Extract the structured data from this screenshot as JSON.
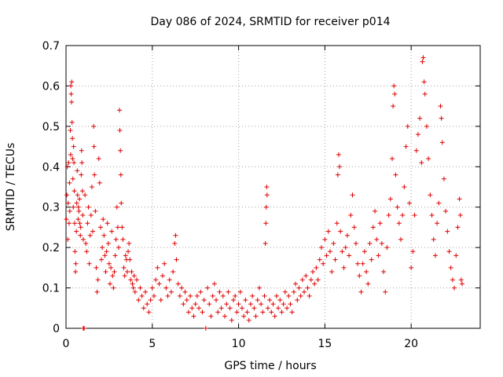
{
  "chart_data": {
    "type": "scatter",
    "title": "Day 086 of 2024, SRMTID for receiver p014",
    "xlabel": "GPS time / hours",
    "ylabel": "SRMTID / TECUs",
    "xlim": [
      0,
      24
    ],
    "ylim": [
      0,
      0.7
    ],
    "xticks": [
      0,
      5,
      10,
      15,
      20
    ],
    "yticks": [
      0,
      0.1,
      0.2,
      0.3,
      0.4,
      0.5,
      0.6,
      0.7
    ],
    "xtick_labels": [
      "0",
      "5",
      "10",
      "15",
      "20"
    ],
    "ytick_labels": [
      "0",
      "0.1",
      "0.2",
      "0.3",
      "0.4",
      "0.5",
      "0.6",
      "0.7"
    ],
    "grid": true,
    "marker": "+",
    "color": "#e00000",
    "series": [
      {
        "name": "SRMTID",
        "points": [
          [
            0.02,
            0.27
          ],
          [
            0.05,
            0.33
          ],
          [
            0.08,
            0.4
          ],
          [
            0.1,
            0.22
          ],
          [
            0.12,
            0.31
          ],
          [
            0.15,
            0.41
          ],
          [
            0.18,
            0.26
          ],
          [
            0.2,
            0.36
          ],
          [
            0.22,
            0.29
          ],
          [
            0.25,
            0.49
          ],
          [
            0.27,
            0.43
          ],
          [
            0.28,
            0.6
          ],
          [
            0.3,
            0.58
          ],
          [
            0.32,
            0.56
          ],
          [
            0.33,
            0.61
          ],
          [
            0.35,
            0.51
          ],
          [
            0.37,
            0.47
          ],
          [
            0.38,
            0.42
          ],
          [
            0.4,
            0.37
          ],
          [
            0.42,
            0.3
          ],
          [
            0.44,
            0.45
          ],
          [
            0.46,
            0.41
          ],
          [
            0.48,
            0.34
          ],
          [
            0.5,
            0.26
          ],
          [
            0.52,
            0.19
          ],
          [
            0.55,
            0.14
          ],
          [
            0.57,
            0.16
          ],
          [
            0.6,
            0.24
          ],
          [
            0.62,
            0.31
          ],
          [
            0.65,
            0.39
          ],
          [
            0.67,
            0.33
          ],
          [
            0.7,
            0.27
          ],
          [
            0.72,
            0.3
          ],
          [
            0.75,
            0.29
          ],
          [
            0.78,
            0.32
          ],
          [
            0.8,
            0.26
          ],
          [
            0.83,
            0.23
          ],
          [
            0.85,
            0.25
          ],
          [
            0.88,
            0.38
          ],
          [
            0.9,
            0.44
          ],
          [
            0.92,
            0.41
          ],
          [
            0.95,
            0.34
          ],
          [
            0.97,
            0.28
          ],
          [
            1.0,
            0.22
          ],
          [
            1.0,
            0.0
          ],
          [
            1.05,
            0.0
          ],
          [
            1.1,
            0.33
          ],
          [
            1.15,
            0.21
          ],
          [
            1.2,
            0.19
          ],
          [
            1.25,
            0.26
          ],
          [
            1.3,
            0.3
          ],
          [
            1.35,
            0.16
          ],
          [
            1.4,
            0.23
          ],
          [
            1.45,
            0.28
          ],
          [
            1.5,
            0.35
          ],
          [
            1.55,
            0.24
          ],
          [
            1.6,
            0.5
          ],
          [
            1.62,
            0.45
          ],
          [
            1.65,
            0.38
          ],
          [
            1.7,
            0.29
          ],
          [
            1.75,
            0.15
          ],
          [
            1.8,
            0.09
          ],
          [
            1.85,
            0.12
          ],
          [
            1.9,
            0.42
          ],
          [
            1.95,
            0.36
          ],
          [
            2.0,
            0.25
          ],
          [
            2.05,
            0.17
          ],
          [
            2.1,
            0.2
          ],
          [
            2.15,
            0.27
          ],
          [
            2.2,
            0.23
          ],
          [
            2.25,
            0.18
          ],
          [
            2.3,
            0.14
          ],
          [
            2.35,
            0.19
          ],
          [
            2.4,
            0.26
          ],
          [
            2.45,
            0.21
          ],
          [
            2.5,
            0.16
          ],
          [
            2.55,
            0.11
          ],
          [
            2.6,
            0.15
          ],
          [
            2.65,
            0.24
          ],
          [
            2.7,
            0.13
          ],
          [
            2.75,
            0.1
          ],
          [
            2.8,
            0.14
          ],
          [
            2.85,
            0.18
          ],
          [
            2.9,
            0.22
          ],
          [
            2.95,
            0.3
          ],
          [
            3.0,
            0.25
          ],
          [
            3.05,
            0.2
          ],
          [
            3.1,
            0.54
          ],
          [
            3.12,
            0.49
          ],
          [
            3.15,
            0.44
          ],
          [
            3.18,
            0.38
          ],
          [
            3.2,
            0.31
          ],
          [
            3.25,
            0.25
          ],
          [
            3.3,
            0.22
          ],
          [
            3.35,
            0.15
          ],
          [
            3.4,
            0.13
          ],
          [
            3.45,
            0.18
          ],
          [
            3.5,
            0.17
          ],
          [
            3.55,
            0.14
          ],
          [
            3.6,
            0.19
          ],
          [
            3.65,
            0.21
          ],
          [
            3.7,
            0.17
          ],
          [
            3.75,
            0.12
          ],
          [
            3.8,
            0.14
          ],
          [
            3.85,
            0.11
          ],
          [
            3.9,
            0.1
          ],
          [
            3.95,
            0.13
          ],
          [
            4.0,
            0.09
          ],
          [
            4.1,
            0.12
          ],
          [
            4.2,
            0.07
          ],
          [
            4.3,
            0.1
          ],
          [
            4.4,
            0.08
          ],
          [
            4.5,
            0.05
          ],
          [
            4.6,
            0.09
          ],
          [
            4.7,
            0.06
          ],
          [
            4.8,
            0.04
          ],
          [
            4.9,
            0.07
          ],
          [
            5.0,
            0.1
          ],
          [
            5.1,
            0.08
          ],
          [
            5.2,
            0.12
          ],
          [
            5.3,
            0.15
          ],
          [
            5.4,
            0.11
          ],
          [
            5.5,
            0.07
          ],
          [
            5.6,
            0.13
          ],
          [
            5.7,
            0.16
          ],
          [
            5.8,
            0.1
          ],
          [
            5.9,
            0.08
          ],
          [
            6.0,
            0.12
          ],
          [
            6.1,
            0.09
          ],
          [
            6.2,
            0.14
          ],
          [
            6.3,
            0.21
          ],
          [
            6.35,
            0.23
          ],
          [
            6.4,
            0.17
          ],
          [
            6.5,
            0.11
          ],
          [
            6.6,
            0.08
          ],
          [
            6.7,
            0.1
          ],
          [
            6.8,
            0.06
          ],
          [
            6.9,
            0.09
          ],
          [
            7.0,
            0.07
          ],
          [
            7.1,
            0.04
          ],
          [
            7.2,
            0.08
          ],
          [
            7.3,
            0.05
          ],
          [
            7.4,
            0.03
          ],
          [
            7.5,
            0.06
          ],
          [
            7.6,
            0.08
          ],
          [
            7.7,
            0.05
          ],
          [
            7.8,
            0.09
          ],
          [
            7.9,
            0.04
          ],
          [
            8.0,
            0.07
          ],
          [
            8.1,
            0.0
          ],
          [
            8.2,
            0.1
          ],
          [
            8.3,
            0.06
          ],
          [
            8.4,
            0.03
          ],
          [
            8.5,
            0.08
          ],
          [
            8.6,
            0.11
          ],
          [
            8.7,
            0.07
          ],
          [
            8.8,
            0.04
          ],
          [
            8.9,
            0.09
          ],
          [
            9.0,
            0.05
          ],
          [
            9.1,
            0.08
          ],
          [
            9.2,
            0.03
          ],
          [
            9.3,
            0.06
          ],
          [
            9.4,
            0.09
          ],
          [
            9.5,
            0.05
          ],
          [
            9.6,
            0.02
          ],
          [
            9.7,
            0.07
          ],
          [
            9.8,
            0.08
          ],
          [
            9.9,
            0.04
          ],
          [
            10.0,
            0.06
          ],
          [
            10.1,
            0.09
          ],
          [
            10.2,
            0.05
          ],
          [
            10.3,
            0.03
          ],
          [
            10.4,
            0.07
          ],
          [
            10.5,
            0.04
          ],
          [
            10.6,
            0.02
          ],
          [
            10.7,
            0.06
          ],
          [
            10.8,
            0.08
          ],
          [
            10.9,
            0.05
          ],
          [
            11.0,
            0.03
          ],
          [
            11.1,
            0.07
          ],
          [
            11.2,
            0.1
          ],
          [
            11.3,
            0.06
          ],
          [
            11.4,
            0.04
          ],
          [
            11.5,
            0.08
          ],
          [
            11.55,
            0.21
          ],
          [
            11.58,
            0.26
          ],
          [
            11.6,
            0.3
          ],
          [
            11.63,
            0.35
          ],
          [
            11.65,
            0.33
          ],
          [
            11.7,
            0.05
          ],
          [
            11.8,
            0.07
          ],
          [
            11.9,
            0.04
          ],
          [
            12.0,
            0.06
          ],
          [
            12.1,
            0.03
          ],
          [
            12.2,
            0.08
          ],
          [
            12.3,
            0.05
          ],
          [
            12.4,
            0.07
          ],
          [
            12.5,
            0.04
          ],
          [
            12.6,
            0.06
          ],
          [
            12.7,
            0.09
          ],
          [
            12.8,
            0.05
          ],
          [
            12.9,
            0.08
          ],
          [
            13.0,
            0.06
          ],
          [
            13.1,
            0.04
          ],
          [
            13.2,
            0.09
          ],
          [
            13.3,
            0.11
          ],
          [
            13.4,
            0.07
          ],
          [
            13.5,
            0.1
          ],
          [
            13.6,
            0.08
          ],
          [
            13.7,
            0.12
          ],
          [
            13.8,
            0.09
          ],
          [
            13.9,
            0.13
          ],
          [
            14.0,
            0.1
          ],
          [
            14.1,
            0.08
          ],
          [
            14.2,
            0.12
          ],
          [
            14.3,
            0.14
          ],
          [
            14.4,
            0.11
          ],
          [
            14.5,
            0.15
          ],
          [
            14.6,
            0.12
          ],
          [
            14.7,
            0.17
          ],
          [
            14.8,
            0.2
          ],
          [
            14.9,
            0.16
          ],
          [
            15.0,
            0.22
          ],
          [
            15.1,
            0.18
          ],
          [
            15.2,
            0.24
          ],
          [
            15.3,
            0.19
          ],
          [
            15.4,
            0.14
          ],
          [
            15.5,
            0.21
          ],
          [
            15.6,
            0.17
          ],
          [
            15.7,
            0.26
          ],
          [
            15.75,
            0.38
          ],
          [
            15.8,
            0.43
          ],
          [
            15.85,
            0.4
          ],
          [
            15.9,
            0.24
          ],
          [
            16.0,
            0.19
          ],
          [
            16.1,
            0.15
          ],
          [
            16.2,
            0.2
          ],
          [
            16.3,
            0.23
          ],
          [
            16.4,
            0.18
          ],
          [
            16.5,
            0.28
          ],
          [
            16.6,
            0.33
          ],
          [
            16.7,
            0.25
          ],
          [
            16.8,
            0.21
          ],
          [
            16.9,
            0.16
          ],
          [
            17.0,
            0.13
          ],
          [
            17.1,
            0.09
          ],
          [
            17.2,
            0.16
          ],
          [
            17.3,
            0.19
          ],
          [
            17.4,
            0.14
          ],
          [
            17.5,
            0.11
          ],
          [
            17.6,
            0.21
          ],
          [
            17.7,
            0.17
          ],
          [
            17.8,
            0.25
          ],
          [
            17.9,
            0.29
          ],
          [
            18.0,
            0.22
          ],
          [
            18.1,
            0.18
          ],
          [
            18.2,
            0.26
          ],
          [
            18.3,
            0.21
          ],
          [
            18.4,
            0.14
          ],
          [
            18.5,
            0.09
          ],
          [
            18.6,
            0.2
          ],
          [
            18.7,
            0.28
          ],
          [
            18.8,
            0.32
          ],
          [
            18.9,
            0.42
          ],
          [
            18.95,
            0.55
          ],
          [
            19.0,
            0.6
          ],
          [
            19.05,
            0.58
          ],
          [
            19.1,
            0.38
          ],
          [
            19.2,
            0.3
          ],
          [
            19.3,
            0.26
          ],
          [
            19.4,
            0.22
          ],
          [
            19.5,
            0.28
          ],
          [
            19.6,
            0.35
          ],
          [
            19.7,
            0.45
          ],
          [
            19.8,
            0.5
          ],
          [
            19.9,
            0.31
          ],
          [
            20.0,
            0.15
          ],
          [
            20.1,
            0.19
          ],
          [
            20.2,
            0.28
          ],
          [
            20.3,
            0.44
          ],
          [
            20.4,
            0.48
          ],
          [
            20.5,
            0.52
          ],
          [
            20.6,
            0.41
          ],
          [
            20.65,
            0.66
          ],
          [
            20.7,
            0.67
          ],
          [
            20.75,
            0.61
          ],
          [
            20.8,
            0.58
          ],
          [
            20.9,
            0.5
          ],
          [
            21.0,
            0.42
          ],
          [
            21.1,
            0.33
          ],
          [
            21.2,
            0.28
          ],
          [
            21.3,
            0.22
          ],
          [
            21.4,
            0.18
          ],
          [
            21.5,
            0.26
          ],
          [
            21.6,
            0.31
          ],
          [
            21.7,
            0.55
          ],
          [
            21.75,
            0.52
          ],
          [
            21.8,
            0.46
          ],
          [
            21.9,
            0.37
          ],
          [
            22.0,
            0.29
          ],
          [
            22.1,
            0.24
          ],
          [
            22.2,
            0.19
          ],
          [
            22.3,
            0.15
          ],
          [
            22.4,
            0.12
          ],
          [
            22.5,
            0.1
          ],
          [
            22.6,
            0.18
          ],
          [
            22.7,
            0.25
          ],
          [
            22.8,
            0.32
          ],
          [
            22.85,
            0.28
          ],
          [
            22.9,
            0.12
          ],
          [
            22.95,
            0.11
          ]
        ]
      }
    ]
  }
}
